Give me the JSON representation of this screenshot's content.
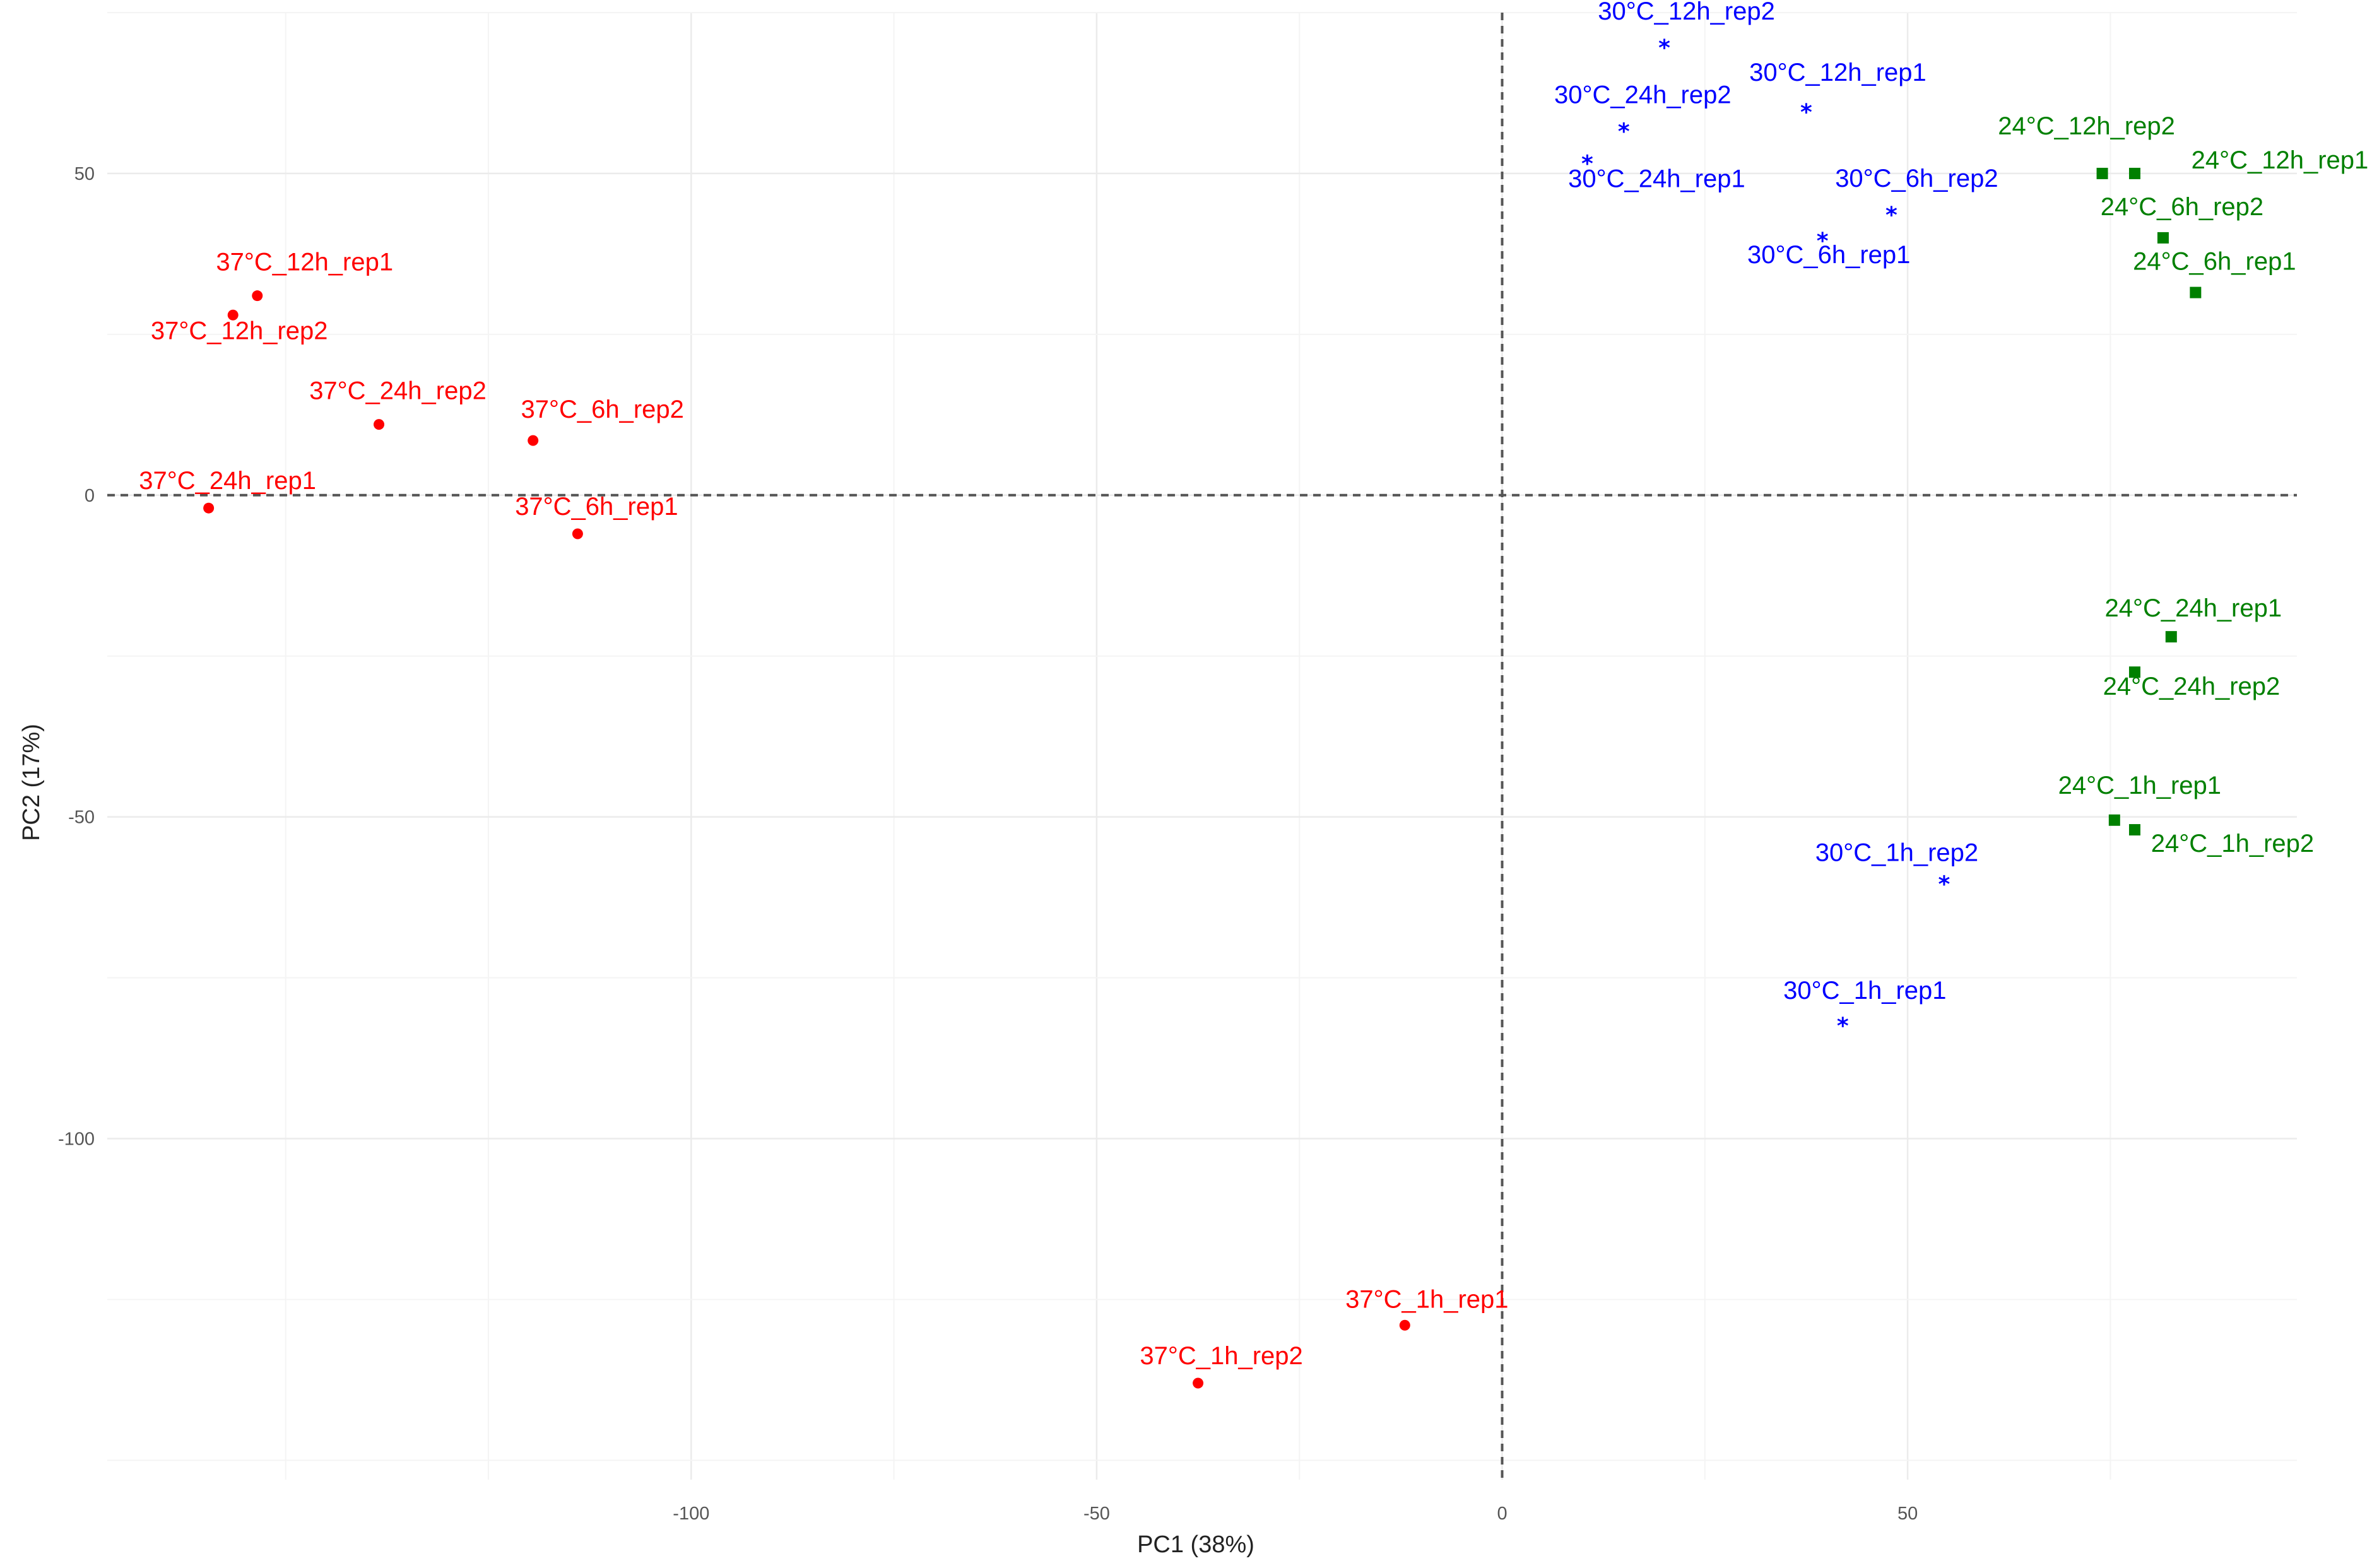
{
  "chart_data": {
    "type": "scatter",
    "xlabel": "PC1 (38%)",
    "ylabel": "PC2 (17%)",
    "xlim": [
      -172,
      98
    ],
    "ylim": [
      -153,
      75
    ],
    "x_ticks": [
      -100,
      -50,
      0,
      50
    ],
    "y_ticks": [
      -100,
      -50,
      0,
      50
    ],
    "grid": true,
    "reference_lines": [
      {
        "axis": "x",
        "value": 0
      },
      {
        "axis": "y",
        "value": 0
      }
    ],
    "series": [
      {
        "color": "#ff0000",
        "marker": "circle",
        "points": [
          {
            "label": "37°C_12h_rep1",
            "x": -153.5,
            "y": 31
          },
          {
            "label": "37°C_12h_rep2",
            "x": -156.5,
            "y": 28
          },
          {
            "label": "37°C_24h_rep2",
            "x": -138.5,
            "y": 11
          },
          {
            "label": "37°C_6h_rep2",
            "x": -119.5,
            "y": 8.5
          },
          {
            "label": "37°C_24h_rep1",
            "x": -159.5,
            "y": -2
          },
          {
            "label": "37°C_6h_rep1",
            "x": -114.0,
            "y": -6
          },
          {
            "label": "37°C_1h_rep1",
            "x": -12.0,
            "y": -129
          },
          {
            "label": "37°C_1h_rep2",
            "x": -37.5,
            "y": -138
          }
        ]
      },
      {
        "color": "#0000ff",
        "marker": "star",
        "points": [
          {
            "label": "30°C_12h_rep2",
            "x": 20.0,
            "y": 70
          },
          {
            "label": "30°C_12h_rep1",
            "x": 37.5,
            "y": 60
          },
          {
            "label": "30°C_24h_rep2",
            "x": 15.0,
            "y": 57
          },
          {
            "label": "30°C_24h_rep1",
            "x": 10.5,
            "y": 52
          },
          {
            "label": "30°C_6h_rep2",
            "x": 48.0,
            "y": 44
          },
          {
            "label": "30°C_6h_rep1",
            "x": 39.5,
            "y": 40
          },
          {
            "label": "30°C_1h_rep2",
            "x": 54.5,
            "y": -60
          },
          {
            "label": "30°C_1h_rep1",
            "x": 42.0,
            "y": -82
          }
        ]
      },
      {
        "color": "#008000",
        "marker": "square",
        "points": [
          {
            "label": "24°C_12h_rep2",
            "x": 74.0,
            "y": 50
          },
          {
            "label": "24°C_12h_rep1",
            "x": 78.0,
            "y": 50
          },
          {
            "label": "24°C_6h_rep2",
            "x": 81.5,
            "y": 40
          },
          {
            "label": "24°C_6h_rep1",
            "x": 85.5,
            "y": 31.5
          },
          {
            "label": "24°C_24h_rep1",
            "x": 82.5,
            "y": -22
          },
          {
            "label": "24°C_24h_rep2",
            "x": 78.0,
            "y": -27.5
          },
          {
            "label": "24°C_1h_rep1",
            "x": 75.5,
            "y": -50.5
          },
          {
            "label": "24°C_1h_rep2",
            "x": 78.0,
            "y": -52
          }
        ]
      }
    ]
  }
}
